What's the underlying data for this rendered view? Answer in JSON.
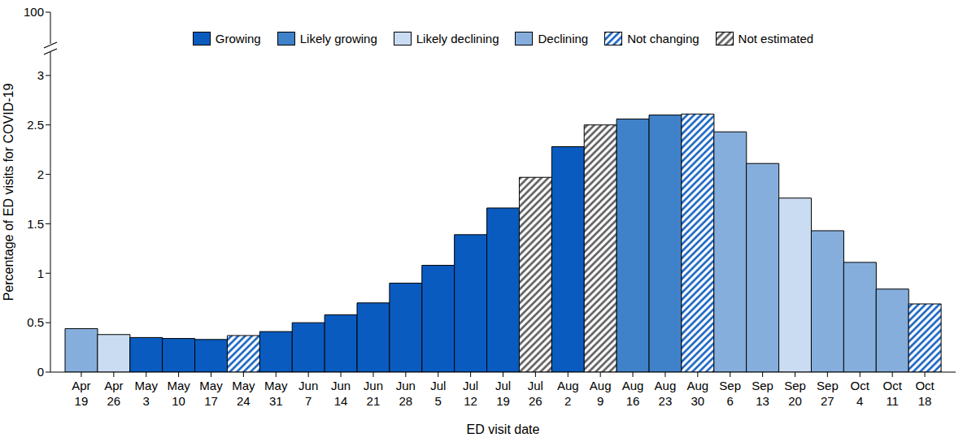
{
  "chart_data": {
    "type": "bar",
    "categories": [
      "Apr 19",
      "Apr 26",
      "May 3",
      "May 10",
      "May 17",
      "May 24",
      "May 31",
      "Jun 7",
      "Jun 14",
      "Jun 21",
      "Jun 28",
      "Jul 5",
      "Jul 12",
      "Jul 19",
      "Jul 26",
      "Aug 2",
      "Aug 9",
      "Aug 16",
      "Aug 23",
      "Aug 30",
      "Sep 6",
      "Sep 13",
      "Sep 20",
      "Sep 27",
      "Oct 4",
      "Oct 11",
      "Oct 18"
    ],
    "series": [
      {
        "name": "Growing",
        "color": "#0a5bbf",
        "line_style": "solid",
        "values": [
          null,
          null,
          0.35,
          0.34,
          0.33,
          null,
          0.41,
          0.5,
          0.58,
          0.7,
          0.9,
          1.08,
          1.39,
          1.66,
          null,
          2.28,
          null,
          null,
          null,
          null,
          null,
          null,
          null,
          null,
          null,
          null,
          null
        ]
      },
      {
        "name": "Likely growing",
        "color": "#3f82c9",
        "line_style": "solid",
        "values": [
          null,
          null,
          null,
          null,
          null,
          null,
          null,
          null,
          null,
          null,
          null,
          null,
          null,
          null,
          null,
          null,
          null,
          2.56,
          2.6,
          null,
          null,
          null,
          null,
          null,
          null,
          null,
          null
        ]
      },
      {
        "name": "Likely declining",
        "color": "#c9dcf2",
        "line_style": "solid",
        "values": [
          null,
          0.38,
          null,
          null,
          null,
          null,
          null,
          null,
          null,
          null,
          null,
          null,
          null,
          null,
          null,
          null,
          null,
          null,
          null,
          null,
          null,
          null,
          1.76,
          null,
          null,
          null,
          null
        ]
      },
      {
        "name": "Declining",
        "color": "#86aedd",
        "line_style": "solid",
        "values": [
          0.44,
          null,
          null,
          null,
          null,
          null,
          null,
          null,
          null,
          null,
          null,
          null,
          null,
          null,
          null,
          null,
          null,
          null,
          null,
          null,
          2.43,
          2.11,
          null,
          1.43,
          1.11,
          0.84,
          null
        ]
      },
      {
        "name": "Not changing",
        "color": "#0a5bbf",
        "line_style": "hatched",
        "values": [
          null,
          null,
          null,
          null,
          null,
          0.37,
          null,
          null,
          null,
          null,
          null,
          null,
          null,
          null,
          null,
          null,
          null,
          null,
          null,
          2.61,
          null,
          null,
          null,
          null,
          null,
          null,
          0.69
        ]
      },
      {
        "name": "Not estimated",
        "color": "#555555",
        "line_style": "hatched",
        "values": [
          null,
          null,
          null,
          null,
          null,
          null,
          null,
          null,
          null,
          null,
          null,
          null,
          null,
          null,
          1.97,
          null,
          2.5,
          null,
          null,
          null,
          null,
          null,
          null,
          null,
          null,
          null,
          null
        ]
      }
    ],
    "x_label": "ED visit date",
    "y_label": "Percentage of ED visits for COVID-19",
    "ylim": [
      0,
      100
    ],
    "yticks": [
      0,
      0.5,
      1,
      1.5,
      2,
      2.5,
      3,
      100
    ],
    "legend": "top",
    "grid": false
  }
}
